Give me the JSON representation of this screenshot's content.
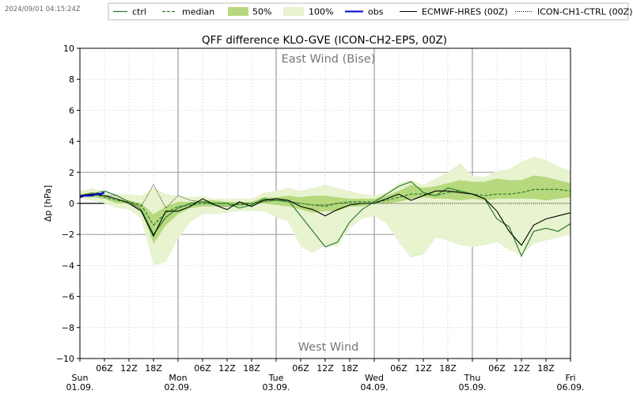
{
  "timestamp": "2024/09/01 04:15:24Z",
  "chart_data": {
    "type": "line",
    "title": "QFF difference KLO-GVE (ICON-CH2-EPS, 00Z)",
    "ylabel": "Δp [hPa]",
    "xlabel": "",
    "ylim": [
      -10,
      10
    ],
    "xlim": [
      0,
      120
    ],
    "x_unit": "hours since Sun 01.09. 00Z",
    "grid": true,
    "legend_position": "top",
    "annotations": {
      "top": "East Wind (Bise)",
      "bottom": "West Wind"
    },
    "yticks": [
      "10",
      "8",
      "6",
      "4",
      "2",
      "0",
      "−2",
      "−4",
      "−6",
      "−8",
      "−10"
    ],
    "xticks_hours": [
      {
        "label": "06Z"
      },
      {
        "label": "12Z"
      },
      {
        "label": "18Z"
      },
      {
        "label": "06Z"
      },
      {
        "label": "12Z"
      },
      {
        "label": "18Z"
      },
      {
        "label": "06Z"
      },
      {
        "label": "12Z"
      },
      {
        "label": "18Z"
      },
      {
        "label": "06Z"
      },
      {
        "label": "12Z"
      },
      {
        "label": "18Z"
      },
      {
        "label": "06Z"
      },
      {
        "label": "12Z"
      },
      {
        "label": "18Z"
      }
    ],
    "day_labels": [
      {
        "day": "Sun",
        "date": "01.09."
      },
      {
        "day": "Mon",
        "date": "02.09."
      },
      {
        "day": "Tue",
        "date": "03.09."
      },
      {
        "day": "Wed",
        "date": "04.09."
      },
      {
        "day": "Thu",
        "date": "05.09."
      },
      {
        "day": "Fri",
        "date": "06.09."
      }
    ],
    "legend": [
      {
        "key": "ctrl",
        "label": "ctrl",
        "color": "#2e7d32",
        "style": "solid"
      },
      {
        "key": "median",
        "label": "median",
        "color": "#2e7d32",
        "style": "dashed"
      },
      {
        "key": "p50",
        "label": "50%",
        "color": "#b5d97c",
        "style": "fill"
      },
      {
        "key": "p100",
        "label": "100%",
        "color": "#e8f3d0",
        "style": "fill"
      },
      {
        "key": "obs",
        "label": "obs",
        "color": "#0000cc",
        "style": "thick"
      },
      {
        "key": "hres",
        "label": "ECMWF-HRES (00Z)",
        "color": "#000000",
        "style": "solid"
      },
      {
        "key": "ch1",
        "label": "ICON-CH1-CTRL (00Z)",
        "color": "#000000",
        "style": "dotted"
      }
    ],
    "colors": {
      "ctrl": "#2e7d32",
      "median": "#2e7d32",
      "band50": "#b5d97c",
      "band100": "#e8f3d0",
      "obs": "#0000cc",
      "hres": "#000000",
      "ch1": "#000000"
    },
    "x": [
      0,
      3,
      6,
      9,
      12,
      15,
      18,
      21,
      24,
      27,
      30,
      33,
      36,
      39,
      42,
      45,
      48,
      51,
      54,
      57,
      60,
      63,
      66,
      69,
      72,
      75,
      78,
      81,
      84,
      87,
      90,
      93,
      96,
      99,
      102,
      105,
      108,
      111,
      114,
      117,
      120
    ],
    "series": {
      "p100_upper": [
        0.8,
        1.0,
        0.7,
        0.6,
        0.6,
        0.5,
        1.0,
        0.6,
        0.5,
        0.4,
        0.5,
        0.3,
        0.3,
        0.3,
        0.3,
        0.7,
        0.8,
        1.0,
        0.8,
        1.0,
        1.2,
        1.0,
        0.8,
        0.6,
        0.5,
        0.7,
        1.3,
        1.5,
        1.2,
        1.6,
        2.0,
        2.6,
        1.8,
        1.7,
        2.1,
        2.2,
        2.7,
        3.0,
        2.8,
        2.4,
        2.1
      ],
      "p100_lower": [
        0.3,
        0.2,
        0.0,
        -0.3,
        -0.4,
        -1.0,
        -4.0,
        -3.8,
        -2.3,
        -1.2,
        -0.7,
        -0.7,
        -0.6,
        -0.5,
        -0.5,
        -0.5,
        -0.9,
        -1.2,
        -2.8,
        -3.2,
        -2.7,
        -2.8,
        -1.6,
        -1.0,
        -0.8,
        -1.3,
        -2.5,
        -3.5,
        -3.3,
        -2.2,
        -2.4,
        -2.7,
        -2.8,
        -2.7,
        -2.5,
        -3.0,
        -3.3,
        -2.6,
        -2.4,
        -2.2,
        -2.0
      ],
      "p50_upper": [
        0.6,
        0.7,
        0.5,
        0.3,
        0.2,
        0.0,
        -0.7,
        -0.2,
        0.1,
        0.1,
        0.2,
        0.2,
        0.1,
        0.1,
        0.1,
        0.4,
        0.4,
        0.5,
        0.4,
        0.5,
        0.5,
        0.4,
        0.3,
        0.3,
        0.3,
        0.5,
        0.8,
        1.2,
        1.0,
        1.1,
        1.3,
        1.5,
        1.4,
        1.4,
        1.6,
        1.5,
        1.5,
        1.8,
        1.7,
        1.5,
        1.3
      ],
      "p50_lower": [
        0.4,
        0.4,
        0.3,
        0.0,
        0.0,
        -0.4,
        -2.6,
        -1.4,
        -0.7,
        -0.3,
        -0.2,
        -0.2,
        -0.2,
        -0.2,
        -0.1,
        0.0,
        -0.1,
        -0.2,
        -0.4,
        -0.6,
        -0.5,
        -0.5,
        -0.2,
        -0.2,
        0.0,
        0.0,
        0.1,
        0.3,
        0.4,
        0.3,
        0.3,
        0.2,
        0.3,
        0.2,
        0.3,
        0.3,
        0.3,
        0.3,
        0.2,
        0.3,
        0.4
      ],
      "median": [
        0.5,
        0.6,
        0.4,
        0.2,
        0.1,
        -0.1,
        -1.4,
        -0.6,
        -0.2,
        -0.1,
        0.0,
        0.0,
        0.0,
        -0.1,
        0.0,
        0.2,
        0.2,
        0.1,
        0.0,
        -0.1,
        -0.2,
        0.0,
        0.1,
        0.1,
        0.1,
        0.2,
        0.4,
        0.6,
        0.6,
        0.5,
        0.7,
        0.8,
        0.6,
        0.5,
        0.6,
        0.6,
        0.7,
        0.9,
        0.9,
        0.9,
        0.8
      ],
      "ctrl": [
        0.4,
        0.6,
        0.8,
        0.5,
        0.1,
        -0.4,
        -2.0,
        -0.9,
        -0.3,
        0.0,
        0.1,
        0.0,
        0.0,
        -0.3,
        -0.1,
        0.3,
        0.2,
        0.2,
        -0.8,
        -1.8,
        -2.8,
        -2.5,
        -1.2,
        -0.4,
        0.1,
        0.6,
        1.1,
        1.4,
        0.7,
        0.5,
        1.0,
        0.8,
        0.6,
        0.3,
        -1.0,
        -1.5,
        -3.4,
        -1.8,
        -1.6,
        -1.8,
        -1.3
      ],
      "hres": [
        0.5,
        0.6,
        0.5,
        0.3,
        0.0,
        -0.5,
        -2.1,
        -0.5,
        -0.5,
        -0.2,
        0.3,
        -0.1,
        -0.4,
        0.1,
        -0.2,
        0.2,
        0.3,
        0.2,
        -0.2,
        -0.4,
        -0.8,
        -0.4,
        -0.1,
        0.0,
        0.0,
        0.3,
        0.6,
        0.2,
        0.5,
        0.8,
        0.8,
        0.7,
        0.6,
        0.3,
        -0.5,
        -1.8,
        -2.7,
        -1.4,
        -1.0,
        -0.8,
        -0.6
      ],
      "ch1": [
        0.5,
        0.7,
        0.5,
        0.5,
        0.1,
        -0.2,
        1.2,
        -0.3,
        0.5,
        0.2,
        0.1,
        -0.1,
        -0.2,
        0.0,
        0.0,
        0.1,
        0.2,
        0.1,
        0.0,
        -0.1,
        -0.1,
        0.0,
        0.0,
        0.0,
        0.0,
        0.0,
        0.0,
        0.0,
        0.0,
        0.0,
        0.0,
        0.0,
        0.0,
        0.0,
        0.0,
        0.0,
        0.0,
        0.0,
        0.0,
        0.0,
        0.0
      ]
    },
    "obs": {
      "x": [
        0,
        1,
        2,
        3,
        4,
        5,
        6
      ],
      "y": [
        0.4,
        0.5,
        0.5,
        0.5,
        0.6,
        0.6,
        0.7
      ]
    }
  }
}
